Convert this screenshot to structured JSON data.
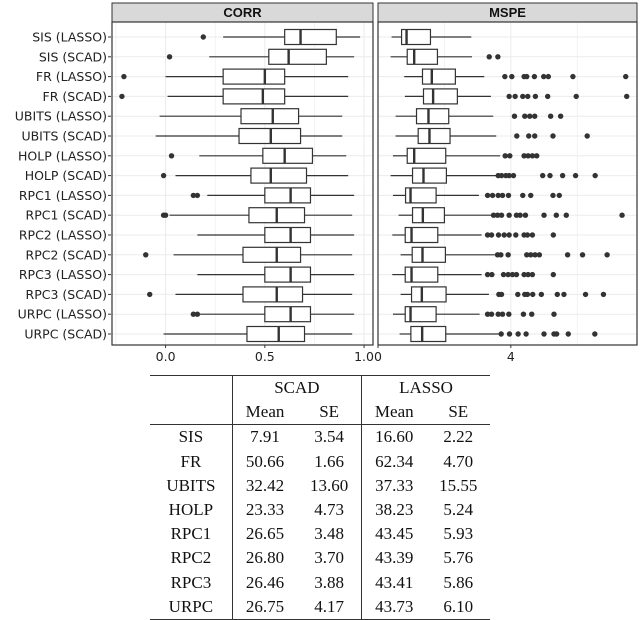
{
  "chart_data": {
    "type": "boxplot",
    "categories": [
      "SIS (LASSO)",
      "SIS (SCAD)",
      "FR (LASSO)",
      "FR (SCAD)",
      "UBITS (LASSO)",
      "UBITS (SCAD)",
      "HOLP (LASSO)",
      "HOLP (SCAD)",
      "RPC1 (LASSO)",
      "RPC1 (SCAD)",
      "RPC2 (LASSO)",
      "RPC2 (SCAD)",
      "RPC3 (LASSO)",
      "RPC3 (SCAD)",
      "URPC (LASSO)",
      "URPC (SCAD)"
    ],
    "grid": true,
    "panels": [
      {
        "title": "CORR",
        "xlim": [
          -0.27,
          1.045
        ],
        "ticks": [
          0.0,
          0.5,
          1.0
        ],
        "tick_labels": [
          "0.0",
          "0.5",
          "1.0"
        ],
        "boxes": [
          {
            "lo": 0.29,
            "q1": 0.6,
            "med": 0.68,
            "q3": 0.86,
            "hi": 0.98,
            "out": [
              0.19
            ]
          },
          {
            "lo": 0.22,
            "q1": 0.52,
            "med": 0.62,
            "q3": 0.81,
            "hi": 0.95,
            "out": [
              0.02
            ]
          },
          {
            "lo": 0.0,
            "q1": 0.29,
            "med": 0.5,
            "q3": 0.6,
            "hi": 0.92,
            "out": [
              -0.21
            ]
          },
          {
            "lo": 0.01,
            "q1": 0.29,
            "med": 0.49,
            "q3": 0.6,
            "hi": 0.92,
            "out": [
              -0.22
            ]
          },
          {
            "lo": -0.03,
            "q1": 0.38,
            "med": 0.54,
            "q3": 0.67,
            "hi": 0.89,
            "out": []
          },
          {
            "lo": -0.05,
            "q1": 0.37,
            "med": 0.53,
            "q3": 0.68,
            "hi": 0.89,
            "out": []
          },
          {
            "lo": 0.17,
            "q1": 0.49,
            "med": 0.6,
            "q3": 0.74,
            "hi": 0.91,
            "out": [
              0.03
            ]
          },
          {
            "lo": 0.05,
            "q1": 0.43,
            "med": 0.53,
            "q3": 0.71,
            "hi": 0.92,
            "out": [
              -0.01
            ]
          },
          {
            "lo": 0.21,
            "q1": 0.5,
            "med": 0.63,
            "q3": 0.73,
            "hi": 0.95,
            "out": [
              0.14,
              0.16
            ]
          },
          {
            "lo": 0.02,
            "q1": 0.42,
            "med": 0.56,
            "q3": 0.7,
            "hi": 0.94,
            "out": [
              -0.01,
              0.0
            ]
          },
          {
            "lo": 0.16,
            "q1": 0.5,
            "med": 0.63,
            "q3": 0.73,
            "hi": 0.95,
            "out": []
          },
          {
            "lo": 0.04,
            "q1": 0.39,
            "med": 0.56,
            "q3": 0.68,
            "hi": 0.94,
            "out": [
              -0.1
            ]
          },
          {
            "lo": 0.16,
            "q1": 0.5,
            "med": 0.63,
            "q3": 0.73,
            "hi": 0.95,
            "out": []
          },
          {
            "lo": 0.05,
            "q1": 0.39,
            "med": 0.56,
            "q3": 0.69,
            "hi": 0.94,
            "out": [
              -0.08
            ]
          },
          {
            "lo": 0.16,
            "q1": 0.5,
            "med": 0.63,
            "q3": 0.73,
            "hi": 0.95,
            "out": [
              0.14,
              0.16
            ]
          },
          {
            "lo": -0.01,
            "q1": 0.41,
            "med": 0.57,
            "q3": 0.7,
            "hi": 0.94,
            "out": []
          }
        ]
      },
      {
        "title": "MSPE",
        "xlim": [
          0,
          7.8
        ],
        "ticks": [
          0,
          4
        ],
        "tick_labels": [
          "0",
          "4"
        ],
        "boxes": [
          {
            "lo": 0.41,
            "q1": 0.71,
            "med": 0.86,
            "q3": 1.58,
            "hi": 2.81,
            "out": []
          },
          {
            "lo": 0.38,
            "q1": 0.88,
            "med": 1.09,
            "q3": 1.79,
            "hi": 2.83,
            "out": [
              3.35,
              3.61
            ]
          },
          {
            "lo": 0.79,
            "q1": 1.34,
            "med": 1.62,
            "q3": 2.33,
            "hi": 3.2,
            "out": [
              3.82,
              4.03,
              4.4,
              4.48,
              4.71,
              4.99,
              5.13,
              5.87,
              7.46
            ]
          },
          {
            "lo": 0.81,
            "q1": 1.37,
            "med": 1.66,
            "q3": 2.39,
            "hi": 3.4,
            "out": [
              3.95,
              4.13,
              4.36,
              4.51,
              4.74,
              5.11,
              5.97,
              7.49
            ]
          },
          {
            "lo": 0.53,
            "q1": 1.16,
            "med": 1.52,
            "q3": 2.13,
            "hi": 3.47,
            "out": [
              4.11,
              4.42,
              4.57,
              4.72,
              5.2,
              5.5
            ]
          },
          {
            "lo": 0.53,
            "q1": 1.21,
            "med": 1.55,
            "q3": 2.17,
            "hi": 3.56,
            "out": [
              4.18,
              4.54,
              4.72,
              5.27,
              6.3
            ]
          },
          {
            "lo": 0.45,
            "q1": 0.88,
            "med": 1.09,
            "q3": 2.04,
            "hi": 3.68,
            "out": [
              3.83,
              3.97,
              4.4,
              4.52,
              4.65,
              4.78
            ]
          },
          {
            "lo": 0.38,
            "q1": 1.04,
            "med": 1.37,
            "q3": 2.06,
            "hi": 3.6,
            "out": [
              3.62,
              3.72,
              3.85,
              3.95,
              4.08,
              4.96,
              5.18,
              5.56,
              5.95,
              6.54
            ]
          },
          {
            "lo": 0.45,
            "q1": 0.83,
            "med": 0.98,
            "q3": 1.75,
            "hi": 3.04,
            "out": [
              3.3,
              3.45,
              3.62,
              3.75,
              3.93,
              4.36,
              4.6,
              5.27,
              5.46
            ]
          },
          {
            "lo": 0.62,
            "q1": 1.04,
            "med": 1.35,
            "q3": 2.0,
            "hi": 3.42,
            "out": [
              3.48,
              3.6,
              3.72,
              3.95,
              4.17,
              4.28,
              4.44,
              5.0,
              5.37,
              5.67,
              7.35
            ]
          },
          {
            "lo": 0.43,
            "q1": 0.82,
            "med": 1.01,
            "q3": 1.8,
            "hi": 3.12,
            "out": [
              3.3,
              3.42,
              3.63,
              3.8,
              3.95,
              4.15,
              4.4,
              4.5,
              4.65,
              5.28
            ]
          },
          {
            "lo": 0.68,
            "q1": 1.03,
            "med": 1.34,
            "q3": 2.03,
            "hi": 3.52,
            "out": [
              3.6,
              3.7,
              3.92,
              4.48,
              4.6,
              4.73,
              4.86,
              5.71,
              6.16,
              6.9
            ]
          },
          {
            "lo": 0.43,
            "q1": 0.82,
            "med": 1.01,
            "q3": 1.8,
            "hi": 3.12,
            "out": [
              3.3,
              3.43,
              3.78,
              3.92,
              4.05,
              4.17,
              4.4,
              4.52,
              4.65,
              5.28
            ]
          },
          {
            "lo": 0.68,
            "q1": 1.01,
            "med": 1.32,
            "q3": 2.05,
            "hi": 3.34,
            "out": [
              3.64,
              3.72,
              4.21,
              4.42,
              4.5,
              4.66,
              4.92,
              5.4,
              5.6,
              6.25,
              6.79
            ]
          },
          {
            "lo": 0.45,
            "q1": 0.82,
            "med": 0.98,
            "q3": 1.75,
            "hi": 3.06,
            "out": [
              3.3,
              3.42,
              3.62,
              3.75,
              3.94,
              4.38,
              4.63,
              5.3
            ]
          },
          {
            "lo": 0.65,
            "q1": 0.99,
            "med": 1.33,
            "q3": 2.04,
            "hi": 3.65,
            "out": [
              3.71,
              3.96,
              4.22,
              4.46,
              5.0,
              5.3,
              5.38,
              5.73,
              6.53
            ]
          }
        ]
      }
    ]
  },
  "table": {
    "groups": [
      "SCAD",
      "LASSO"
    ],
    "subheaders": [
      "Mean",
      "SE",
      "Mean",
      "SE"
    ],
    "rows": [
      {
        "method": "SIS",
        "v": [
          "7.91",
          "3.54",
          "16.60",
          "2.22"
        ]
      },
      {
        "method": "FR",
        "v": [
          "50.66",
          "1.66",
          "62.34",
          "4.70"
        ]
      },
      {
        "method": "UBITS",
        "v": [
          "32.42",
          "13.60",
          "37.33",
          "15.55"
        ]
      },
      {
        "method": "HOLP",
        "v": [
          "23.33",
          "4.73",
          "38.23",
          "5.24"
        ]
      },
      {
        "method": "RPC1",
        "v": [
          "26.65",
          "3.48",
          "43.45",
          "5.93"
        ]
      },
      {
        "method": "RPC2",
        "v": [
          "26.80",
          "3.70",
          "43.39",
          "5.76"
        ]
      },
      {
        "method": "RPC3",
        "v": [
          "26.46",
          "3.88",
          "43.41",
          "5.86"
        ]
      },
      {
        "method": "URPC",
        "v": [
          "26.75",
          "4.17",
          "43.73",
          "6.10"
        ]
      }
    ]
  }
}
